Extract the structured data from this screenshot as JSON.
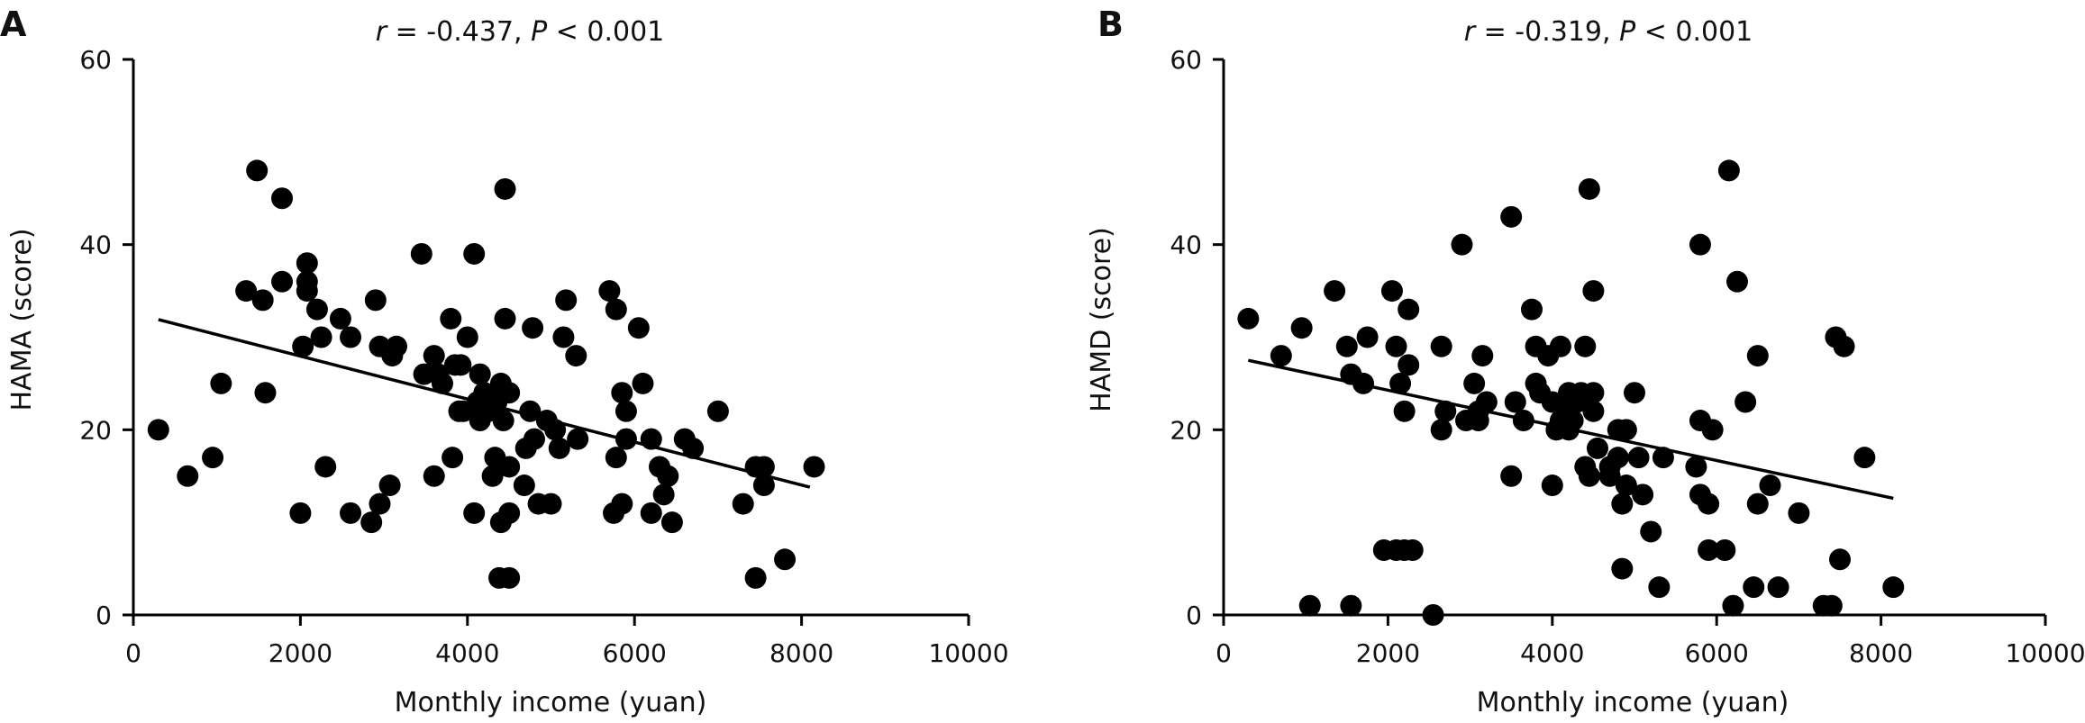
{
  "panels": [
    {
      "letter": "A",
      "stat_r": "r",
      "stat_r_text": " = -0.437, ",
      "stat_p": "P",
      "stat_p_text": " < 0.001"
    },
    {
      "letter": "B",
      "stat_r": "r",
      "stat_r_text": " = -0.319, ",
      "stat_p": "P",
      "stat_p_text": " < 0.001"
    }
  ],
  "colors": {
    "points": "#000000",
    "axes": "#000000",
    "fit_line": "#000000"
  },
  "chart_data": [
    {
      "type": "scatter",
      "title": "",
      "xlabel": "Monthly income (yuan)",
      "ylabel": "HAMA (score)",
      "xlim": [
        0,
        10000
      ],
      "ylim": [
        0,
        60
      ],
      "x_ticks": [
        0,
        2000,
        4000,
        6000,
        8000,
        10000
      ],
      "y_ticks": [
        0,
        20,
        40,
        60
      ],
      "grid": false,
      "fit_line": {
        "x": [
          300,
          8100
        ],
        "y": [
          31.9,
          13.8
        ]
      },
      "points": [
        [
          300,
          20
        ],
        [
          650,
          15
        ],
        [
          950,
          17
        ],
        [
          1050,
          25
        ],
        [
          1350,
          35
        ],
        [
          1480,
          48
        ],
        [
          1550,
          34
        ],
        [
          1580,
          24
        ],
        [
          1780,
          36
        ],
        [
          1780,
          45
        ],
        [
          2000,
          11
        ],
        [
          2030,
          29
        ],
        [
          2080,
          38
        ],
        [
          2080,
          35
        ],
        [
          2080,
          36
        ],
        [
          2200,
          33
        ],
        [
          2250,
          30
        ],
        [
          2300,
          16
        ],
        [
          2480,
          32
        ],
        [
          2600,
          11
        ],
        [
          2600,
          30
        ],
        [
          2850,
          10
        ],
        [
          2900,
          34
        ],
        [
          2950,
          12
        ],
        [
          2950,
          29
        ],
        [
          3070,
          14
        ],
        [
          3100,
          28
        ],
        [
          3150,
          29
        ],
        [
          3450,
          39
        ],
        [
          3480,
          26
        ],
        [
          3600,
          28
        ],
        [
          3600,
          15
        ],
        [
          3650,
          26
        ],
        [
          3700,
          25
        ],
        [
          3800,
          32
        ],
        [
          3820,
          17
        ],
        [
          3850,
          27
        ],
        [
          3900,
          22
        ],
        [
          3920,
          27
        ],
        [
          3950,
          22
        ],
        [
          4000,
          30
        ],
        [
          4080,
          39
        ],
        [
          4080,
          11
        ],
        [
          4120,
          23
        ],
        [
          4150,
          21
        ],
        [
          4150,
          26
        ],
        [
          4200,
          24
        ],
        [
          4250,
          22
        ],
        [
          4300,
          15
        ],
        [
          4330,
          17
        ],
        [
          4350,
          23
        ],
        [
          4380,
          4
        ],
        [
          4400,
          25
        ],
        [
          4400,
          10
        ],
        [
          4430,
          21
        ],
        [
          4450,
          32
        ],
        [
          4450,
          46
        ],
        [
          4500,
          11
        ],
        [
          4500,
          24
        ],
        [
          4500,
          16
        ],
        [
          4500,
          4
        ],
        [
          4680,
          14
        ],
        [
          4700,
          18
        ],
        [
          4750,
          22
        ],
        [
          4780,
          31
        ],
        [
          4800,
          19
        ],
        [
          4850,
          12
        ],
        [
          4950,
          21
        ],
        [
          5000,
          12
        ],
        [
          5050,
          20
        ],
        [
          5100,
          18
        ],
        [
          5150,
          30
        ],
        [
          5180,
          34
        ],
        [
          5300,
          28
        ],
        [
          5320,
          19
        ],
        [
          5700,
          35
        ],
        [
          5750,
          11
        ],
        [
          5780,
          17
        ],
        [
          5780,
          33
        ],
        [
          5850,
          24
        ],
        [
          5850,
          12
        ],
        [
          5900,
          19
        ],
        [
          5900,
          22
        ],
        [
          6050,
          31
        ],
        [
          6100,
          25
        ],
        [
          6200,
          19
        ],
        [
          6200,
          11
        ],
        [
          6300,
          16
        ],
        [
          6350,
          13
        ],
        [
          6400,
          15
        ],
        [
          6450,
          10
        ],
        [
          6600,
          19
        ],
        [
          6700,
          18
        ],
        [
          7000,
          22
        ],
        [
          7300,
          12
        ],
        [
          7450,
          4
        ],
        [
          7450,
          16
        ],
        [
          7550,
          16
        ],
        [
          7550,
          14
        ],
        [
          7800,
          6
        ],
        [
          8150,
          16
        ]
      ]
    },
    {
      "type": "scatter",
      "title": "",
      "xlabel": "Monthly income (yuan)",
      "ylabel": "HAMD (score)",
      "xlim": [
        0,
        10000
      ],
      "ylim": [
        0,
        60
      ],
      "x_ticks": [
        0,
        2000,
        4000,
        6000,
        8000,
        10000
      ],
      "y_ticks": [
        0,
        20,
        40,
        60
      ],
      "grid": false,
      "fit_line": {
        "x": [
          300,
          8150
        ],
        "y": [
          27.5,
          12.6
        ]
      },
      "points": [
        [
          300,
          32
        ],
        [
          700,
          28
        ],
        [
          950,
          31
        ],
        [
          1050,
          1
        ],
        [
          1350,
          35
        ],
        [
          1550,
          1
        ],
        [
          1500,
          29
        ],
        [
          1550,
          26
        ],
        [
          1700,
          25
        ],
        [
          1750,
          30
        ],
        [
          1950,
          7
        ],
        [
          2050,
          35
        ],
        [
          2100,
          7
        ],
        [
          2100,
          29
        ],
        [
          2150,
          25
        ],
        [
          2200,
          7
        ],
        [
          2200,
          22
        ],
        [
          2250,
          33
        ],
        [
          2250,
          27
        ],
        [
          2300,
          7
        ],
        [
          2550,
          0
        ],
        [
          2650,
          20
        ],
        [
          2650,
          29
        ],
        [
          2700,
          22
        ],
        [
          2900,
          40
        ],
        [
          2950,
          21
        ],
        [
          3050,
          25
        ],
        [
          3100,
          21
        ],
        [
          3100,
          22
        ],
        [
          3150,
          28
        ],
        [
          3200,
          23
        ],
        [
          3500,
          43
        ],
        [
          3500,
          15
        ],
        [
          3550,
          23
        ],
        [
          3650,
          21
        ],
        [
          3750,
          33
        ],
        [
          3800,
          25
        ],
        [
          3800,
          29
        ],
        [
          3850,
          24
        ],
        [
          3950,
          28
        ],
        [
          4000,
          14
        ],
        [
          4000,
          23
        ],
        [
          4050,
          20
        ],
        [
          4100,
          21
        ],
        [
          4100,
          29
        ],
        [
          4150,
          22
        ],
        [
          4200,
          24
        ],
        [
          4200,
          20
        ],
        [
          4250,
          21
        ],
        [
          4300,
          23
        ],
        [
          4350,
          24
        ],
        [
          4400,
          29
        ],
        [
          4400,
          16
        ],
        [
          4450,
          15
        ],
        [
          4450,
          46
        ],
        [
          4500,
          35
        ],
        [
          4500,
          22
        ],
        [
          4500,
          24
        ],
        [
          4550,
          18
        ],
        [
          4700,
          16
        ],
        [
          4700,
          15
        ],
        [
          4800,
          17
        ],
        [
          4800,
          20
        ],
        [
          4850,
          5
        ],
        [
          4850,
          12
        ],
        [
          4900,
          14
        ],
        [
          4900,
          20
        ],
        [
          5000,
          24
        ],
        [
          5050,
          17
        ],
        [
          5100,
          13
        ],
        [
          5200,
          9
        ],
        [
          5300,
          3
        ],
        [
          5350,
          17
        ],
        [
          5750,
          16
        ],
        [
          5800,
          21
        ],
        [
          5800,
          40
        ],
        [
          5800,
          13
        ],
        [
          5900,
          7
        ],
        [
          5900,
          12
        ],
        [
          5950,
          20
        ],
        [
          6100,
          7
        ],
        [
          6150,
          48
        ],
        [
          6200,
          1
        ],
        [
          6250,
          36
        ],
        [
          6350,
          23
        ],
        [
          6450,
          3
        ],
        [
          6500,
          28
        ],
        [
          6500,
          12
        ],
        [
          6650,
          14
        ],
        [
          6750,
          3
        ],
        [
          7000,
          11
        ],
        [
          7300,
          1
        ],
        [
          7400,
          1
        ],
        [
          7450,
          30
        ],
        [
          7500,
          6
        ],
        [
          7550,
          29
        ],
        [
          7800,
          17
        ],
        [
          8150,
          3
        ]
      ]
    }
  ]
}
